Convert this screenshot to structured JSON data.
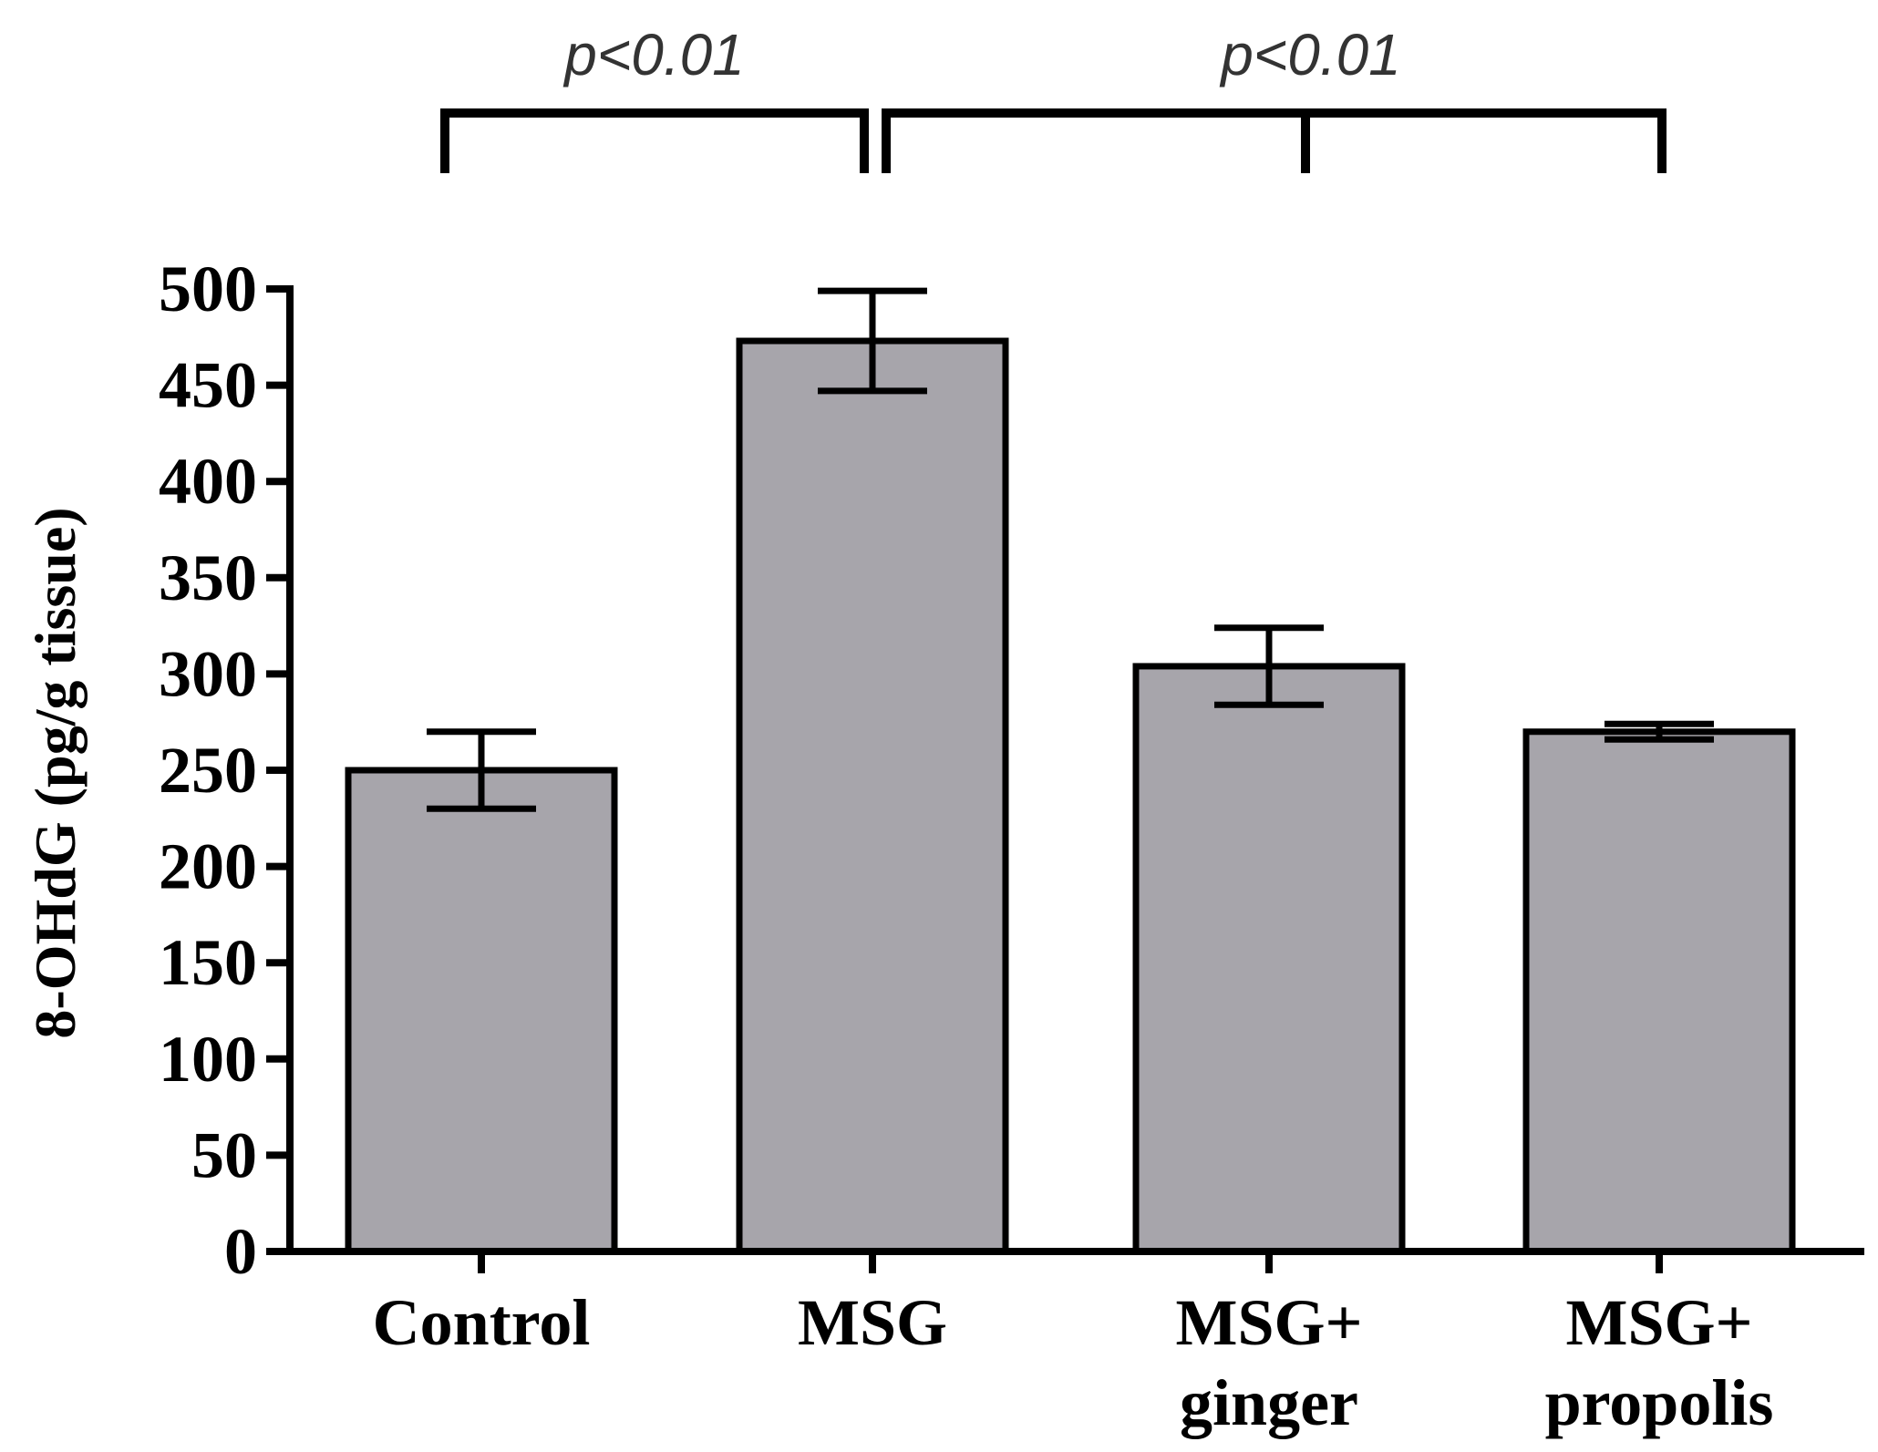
{
  "chart_data": {
    "type": "bar",
    "title": "",
    "xlabel": "",
    "ylabel": "8-OHdG (pg/g tissue)",
    "ylim": [
      0,
      500
    ],
    "yticks": [
      0,
      50,
      100,
      150,
      200,
      250,
      300,
      350,
      400,
      450,
      500
    ],
    "categories": [
      [
        "Control"
      ],
      [
        "MSG"
      ],
      [
        "MSG+",
        "ginger"
      ],
      [
        "MSG+",
        "propolis"
      ]
    ],
    "values": [
      250,
      473,
      304,
      270
    ],
    "errors": [
      20,
      26,
      20,
      4
    ],
    "bar_color": "#a7a5ab",
    "comparisons": [
      {
        "label": "p<0.01",
        "groups": [
          0,
          1
        ]
      },
      {
        "label": "p<0.01",
        "groups": [
          1,
          2,
          3
        ]
      }
    ]
  }
}
